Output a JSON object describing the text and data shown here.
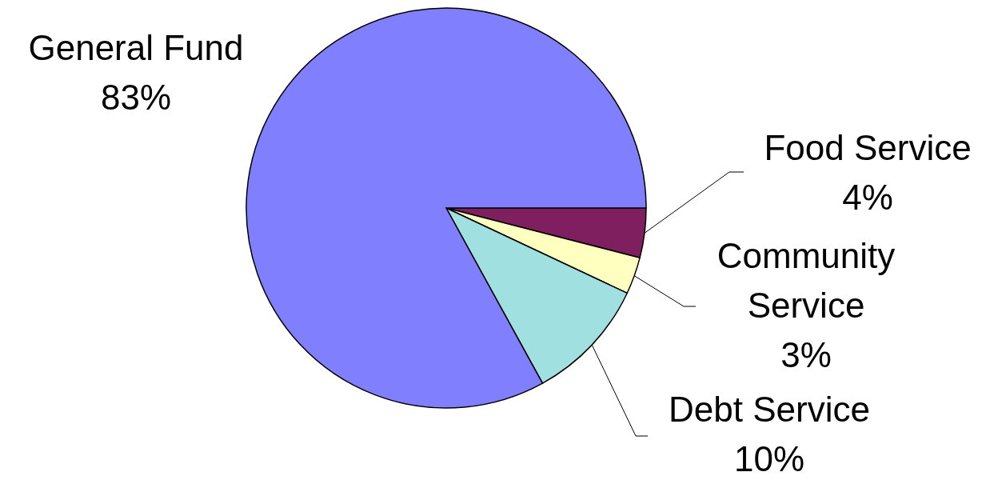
{
  "chart_data": {
    "type": "pie",
    "categories": [
      "Food Service",
      "Community Service",
      "Debt Service",
      "General Fund"
    ],
    "values": [
      4,
      3,
      10,
      83
    ],
    "colors": [
      "#7f1f5f",
      "#ffffc0",
      "#a0e0e0",
      "#8080ff"
    ],
    "value_labels": [
      "4%",
      "3%",
      "10%",
      "83%"
    ]
  }
}
